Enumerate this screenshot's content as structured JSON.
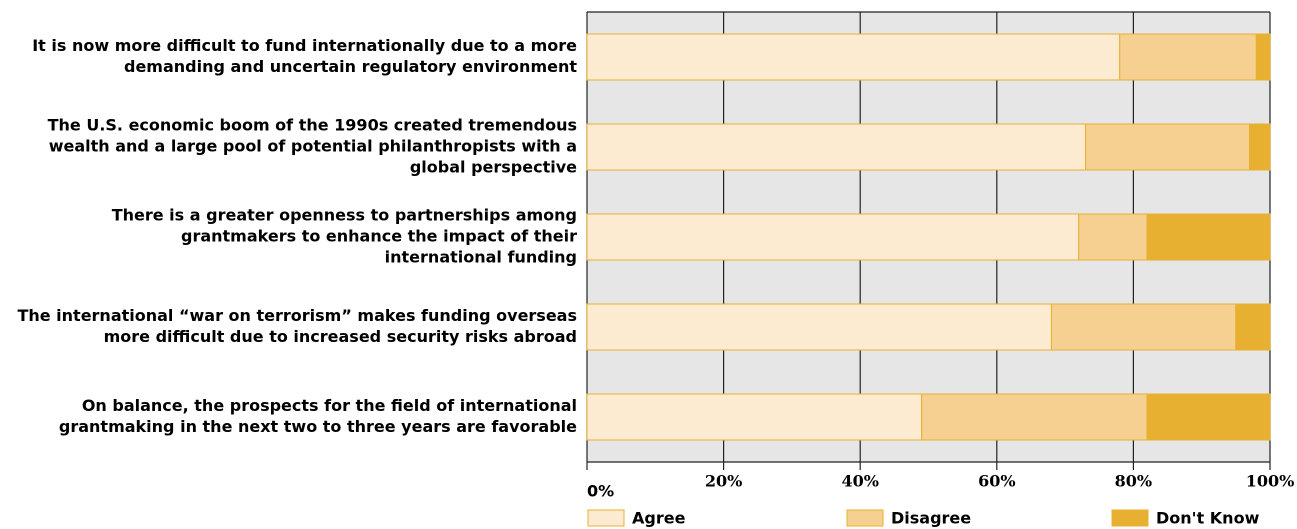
{
  "chart_data": {
    "type": "stacked-barh",
    "categories": [
      [
        "It is now more difficult to fund internationally due to a more",
        "demanding and uncertain regulatory environment"
      ],
      [
        "The U.S. economic boom of the 1990s created tremendous",
        "wealth and a large pool of potential philanthropists with a",
        "global perspective"
      ],
      [
        "There is a greater openness to partnerships among",
        "grantmakers to enhance the impact of their",
        "international funding"
      ],
      [
        "The international “war on terrorism” makes funding overseas",
        "more difficult due to increased security risks abroad"
      ],
      [
        "On balance, the prospects for the field of international",
        "grantmaking in the next two to three years are favorable"
      ]
    ],
    "series": [
      {
        "name": "Agree",
        "color": "#fcebd0",
        "values": [
          78,
          73,
          72,
          68,
          49
        ]
      },
      {
        "name": "Disagree",
        "color": "#f5d091",
        "values": [
          20,
          24,
          10,
          27,
          33
        ]
      },
      {
        "name": "Don't Know",
        "color": "#e8b030",
        "values": [
          2,
          3,
          18,
          5,
          18
        ]
      }
    ],
    "xlim": [
      0,
      100
    ],
    "xticks": [
      {
        "value": 0,
        "label": "0%"
      },
      {
        "value": 20,
        "label": "20%"
      },
      {
        "value": 40,
        "label": "40%"
      },
      {
        "value": 60,
        "label": "60%"
      },
      {
        "value": 80,
        "label": "80%"
      },
      {
        "value": 100,
        "label": "100%"
      }
    ],
    "grid": true
  }
}
